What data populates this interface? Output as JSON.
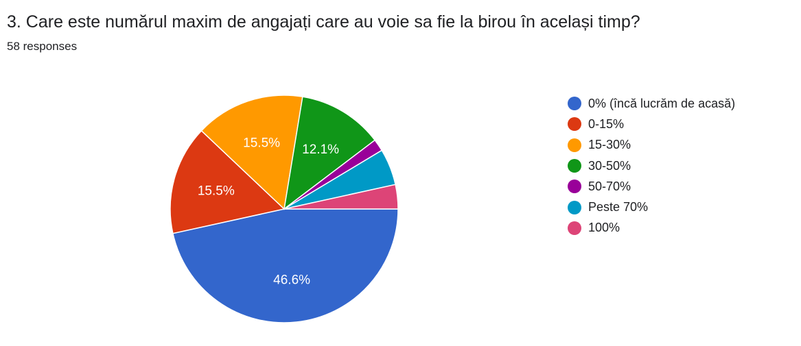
{
  "question": {
    "title": "3. Care este numărul maxim de angajați care au voie sa fie la birou în același timp?",
    "responses": "58 responses"
  },
  "chart_data": {
    "type": "pie",
    "total": 58,
    "slices": [
      {
        "label": "0% (încă lucrăm de acasă)",
        "count": 27,
        "value": 46.6,
        "display": "46.6%",
        "color": "#3366cc"
      },
      {
        "label": "0-15%",
        "count": 9,
        "value": 15.5,
        "display": "15.5%",
        "color": "#dc3912"
      },
      {
        "label": "15-30%",
        "count": 9,
        "value": 15.5,
        "display": "15.5%",
        "color": "#ff9900"
      },
      {
        "label": "30-50%",
        "count": 7,
        "value": 12.1,
        "display": "12.1%",
        "color": "#109618"
      },
      {
        "label": "50-70%",
        "count": 1,
        "value": 1.7,
        "display": "",
        "color": "#990099"
      },
      {
        "label": "Peste 70%",
        "count": 3,
        "value": 5.2,
        "display": "",
        "color": "#0099c6"
      },
      {
        "label": "100%",
        "count": 2,
        "value": 3.4,
        "display": "",
        "color": "#dd4477"
      }
    ],
    "legend_position": "right"
  }
}
